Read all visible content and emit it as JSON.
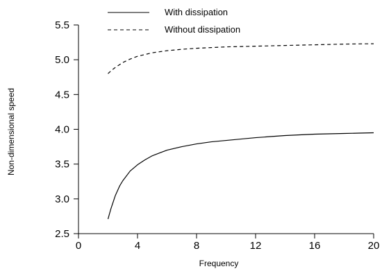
{
  "chart_data": {
    "type": "line",
    "title": "",
    "xlabel": "Frequency",
    "ylabel": "Non-dimensional speed",
    "xlim": [
      0,
      20
    ],
    "ylim": [
      2.5,
      5.5
    ],
    "x_ticks": [
      0,
      4,
      8,
      12,
      16,
      20
    ],
    "x_tick_labels": [
      "0",
      "4",
      "8",
      "12",
      "16",
      "20"
    ],
    "y_ticks": [
      2.5,
      3.0,
      3.5,
      4.0,
      4.5,
      5.0,
      5.5
    ],
    "y_tick_labels": [
      "2.5",
      "3.0",
      "3.5",
      "4.0",
      "4.5",
      "5.0",
      "5.5"
    ],
    "grid": false,
    "legend_position": "top",
    "series": [
      {
        "name": "With dissipation",
        "style": "solid",
        "color": "#000000",
        "x": [
          2,
          2.2,
          2.5,
          2.8,
          3,
          3.5,
          4,
          4.5,
          5,
          5.5,
          6,
          7,
          8,
          9,
          10,
          11,
          12,
          13,
          14,
          15,
          16,
          17,
          18,
          19,
          20
        ],
        "y": [
          2.71,
          2.86,
          3.05,
          3.19,
          3.26,
          3.4,
          3.49,
          3.56,
          3.62,
          3.66,
          3.7,
          3.75,
          3.79,
          3.82,
          3.84,
          3.86,
          3.88,
          3.895,
          3.91,
          3.92,
          3.93,
          3.935,
          3.94,
          3.945,
          3.95
        ]
      },
      {
        "name": "Without dissipation",
        "style": "dashed",
        "color": "#000000",
        "x": [
          2,
          2.2,
          2.5,
          3,
          3.5,
          4,
          5,
          6,
          7,
          8,
          9,
          10,
          11,
          12,
          13,
          14,
          15,
          16,
          17,
          18,
          19,
          20
        ],
        "y": [
          4.8,
          4.84,
          4.89,
          4.96,
          5.01,
          5.05,
          5.1,
          5.13,
          5.15,
          5.165,
          5.175,
          5.185,
          5.19,
          5.195,
          5.2,
          5.205,
          5.21,
          5.215,
          5.22,
          5.225,
          5.228,
          5.23
        ]
      }
    ]
  }
}
